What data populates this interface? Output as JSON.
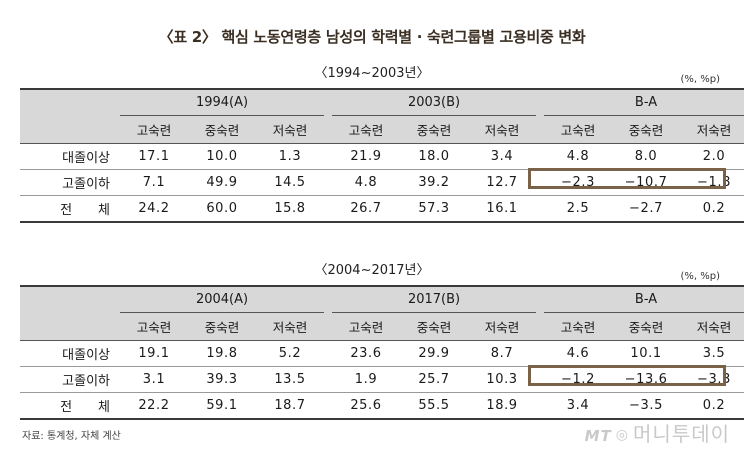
{
  "title": "〈표 2〉 핵심 노동연령층 남성의 학력별 · 숙련그룹별 고용비중 변화",
  "unit": "(%, %p)",
  "tables": [
    {
      "period": "〈1994~2003년〉",
      "groups": [
        "1994(A)",
        "2003(B)",
        "B-A"
      ],
      "subheaders": [
        "고숙련",
        "중숙련",
        "저숙련"
      ],
      "rows": [
        {
          "label": "대졸이상",
          "values": [
            "17.1",
            "10.0",
            "1.3",
            "21.9",
            "18.0",
            "3.4",
            "4.8",
            "8.0",
            "2.0"
          ]
        },
        {
          "label": "고졸이하",
          "values": [
            "7.1",
            "49.9",
            "14.5",
            "4.8",
            "39.2",
            "12.7",
            "−2.3",
            "−10.7",
            "−1.8"
          ]
        },
        {
          "label": "전　　체",
          "values": [
            "24.2",
            "60.0",
            "15.8",
            "26.7",
            "57.3",
            "16.1",
            "2.5",
            "−2.7",
            "0.2"
          ]
        }
      ]
    },
    {
      "period": "〈2004~2017년〉",
      "groups": [
        "2004(A)",
        "2017(B)",
        "B-A"
      ],
      "subheaders": [
        "고숙련",
        "중숙련",
        "저숙련"
      ],
      "rows": [
        {
          "label": "대졸이상",
          "values": [
            "19.1",
            "19.8",
            "5.2",
            "23.6",
            "29.9",
            "8.7",
            "4.6",
            "10.1",
            "3.5"
          ]
        },
        {
          "label": "고졸이하",
          "values": [
            "3.1",
            "39.3",
            "13.5",
            "1.9",
            "25.7",
            "10.3",
            "−1.2",
            "−13.6",
            "−3.3"
          ]
        },
        {
          "label": "전　　체",
          "values": [
            "22.2",
            "59.1",
            "18.7",
            "25.6",
            "55.5",
            "18.9",
            "3.4",
            "−3.5",
            "0.2"
          ]
        }
      ]
    }
  ],
  "source": "자료: 통계청, 자체 계산",
  "watermark": {
    "mt": "MT",
    "text": "머니투데이"
  }
}
